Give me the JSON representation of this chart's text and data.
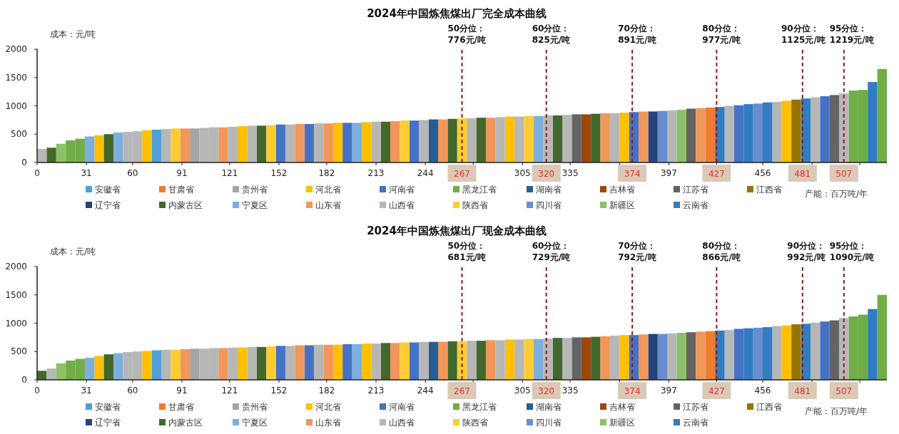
{
  "chart_data": [
    {
      "type": "bar",
      "title": "2024年中国炼焦煤出厂完全成本曲线",
      "ylabel": "成本：元/吨",
      "xlabel": "产能：百万吨/年",
      "legend": "bottom",
      "grid": false,
      "xlim": [
        0,
        534
      ],
      "xticks": [
        0,
        31,
        60,
        91,
        121,
        152,
        182,
        213,
        244,
        {
          "value": 274,
          "label": null
        },
        305,
        335,
        {
          "value": 366,
          "label": null
        },
        397,
        {
          "value": 427,
          "label": null
        },
        456,
        {
          "value": 487,
          "label": null
        },
        {
          "value": 517,
          "label": null
        }
      ],
      "ylim": [
        0,
        2000
      ],
      "yticks": [
        0,
        500,
        1000,
        1500,
        2000
      ],
      "ref_lines": [
        {
          "axis": "x",
          "value": 267,
          "label": "50分位：\n776元/吨",
          "color": "#8b1a1a",
          "line_style": "dashed"
        },
        {
          "axis": "x",
          "value": 320,
          "label": "60分位：\n825元/吨",
          "color": "#8b1a1a",
          "line_style": "dashed"
        },
        {
          "axis": "x",
          "value": 374,
          "label": "70分位：\n891元/吨",
          "color": "#8b1a1a",
          "line_style": "dashed"
        },
        {
          "axis": "x",
          "value": 427,
          "label": "80分位：\n977元/吨",
          "color": "#8b1a1a",
          "line_style": "dashed"
        },
        {
          "axis": "x",
          "value": 481,
          "label": "90分位：\n1125元/吨",
          "color": "#8b1a1a",
          "line_style": "dashed"
        },
        {
          "axis": "x",
          "value": 507,
          "label": "95分位：\n1219元/吨",
          "color": "#8b1a1a",
          "line_style": "dashed"
        }
      ],
      "annotations": [
        {
          "text": "267",
          "x": 267,
          "y": 0
        },
        {
          "text": "320",
          "x": 320,
          "y": 0
        },
        {
          "text": "374",
          "x": 374,
          "y": 0
        },
        {
          "text": "427",
          "x": 427,
          "y": 0
        },
        {
          "text": "481",
          "x": 481,
          "y": 0
        },
        {
          "text": "507",
          "x": 507,
          "y": 0
        }
      ],
      "series": [
        {
          "name": "安徽省",
          "color": "#4f9fd6",
          "x": [
            75
          ],
          "values": [
            580
          ]
        },
        {
          "name": "甘肃省",
          "color": "#ed7d31",
          "x": [
            423
          ],
          "values": [
            970
          ]
        },
        {
          "name": "贵州省",
          "color": "#a5a5a5",
          "x": [
            99
          ],
          "values": [
            600
          ]
        },
        {
          "name": "河北省",
          "color": "#ffc000",
          "x": [
            39,
            69,
            129,
            189,
            207,
            297,
            369,
            471
          ],
          "values": [
            480,
            570,
            640,
            700,
            710,
            810,
            880,
            1090
          ]
        },
        {
          "name": "河南省",
          "color": "#4472c4",
          "x": [
            153,
            171,
            195,
            237,
            375,
            441,
            495
          ],
          "values": [
            670,
            680,
            700,
            740,
            890,
            1010,
            1170
          ]
        },
        {
          "name": "黑龙江省",
          "color": "#70ad47",
          "x": [
            21,
            27,
            513,
            519,
            531
          ],
          "values": [
            390,
            420,
            1270,
            1280,
            1650
          ]
        },
        {
          "name": "湖南省",
          "color": "#255e91",
          "x": [
            249
          ],
          "values": [
            760
          ]
        },
        {
          "name": "吉林省",
          "color": "#9e480e",
          "x": [
            345
          ],
          "values": [
            850
          ]
        },
        {
          "name": "江苏省",
          "color": "#636363",
          "x": [
            339,
            411,
            501
          ],
          "values": [
            850,
            950,
            1190
          ]
        },
        {
          "name": "江西省",
          "color": "#997300",
          "x": [
            477
          ],
          "values": [
            1110
          ]
        },
        {
          "name": "辽宁省",
          "color": "#264478",
          "x": [
            387
          ],
          "values": [
            900
          ]
        },
        {
          "name": "内蒙古区",
          "color": "#43682b",
          "x": [
            9,
            45,
            141,
            219,
            261,
            279,
            327,
            351
          ],
          "values": [
            260,
            500,
            650,
            720,
            770,
            790,
            830,
            860
          ]
        },
        {
          "name": "宁夏区",
          "color": "#7cafdd",
          "x": [
            33,
            51,
            201,
            315
          ],
          "values": [
            460,
            530,
            700,
            820
          ]
        },
        {
          "name": "山东省",
          "color": "#f1975a",
          "x": [
            93,
            117,
            165,
            183,
            225,
            255,
            285,
            357,
            381,
            417
          ],
          "values": [
            600,
            620,
            680,
            690,
            730,
            760,
            790,
            870,
            900,
            960
          ]
        },
        {
          "name": "山西省",
          "color": "#b7b7b7",
          "x": [
            3,
            57,
            63,
            81,
            105,
            111,
            123,
            135,
            159,
            177,
            213,
            243,
            273,
            291,
            303,
            321,
            333,
            363,
            399,
            435,
            465,
            489,
            507
          ],
          "values": [
            240,
            540,
            550,
            590,
            610,
            620,
            630,
            650,
            670,
            690,
            720,
            750,
            780,
            800,
            810,
            830,
            840,
            870,
            920,
            1000,
            1070,
            1150,
            1220
          ]
        },
        {
          "name": "陕西省",
          "color": "#ffcd33",
          "x": [
            87,
            147,
            231,
            267,
            309
          ],
          "values": [
            600,
            660,
            740,
            780,
            820
          ]
        },
        {
          "name": "四川省",
          "color": "#698ed0",
          "x": [
            393,
            453
          ],
          "values": [
            910,
            1040
          ]
        },
        {
          "name": "新疆区",
          "color": "#8cc168",
          "x": [
            15,
            405
          ],
          "values": [
            330,
            930
          ]
        },
        {
          "name": "云南省",
          "color": "#327dc2",
          "x": [
            429,
            447,
            459,
            483,
            525
          ],
          "values": [
            980,
            1030,
            1060,
            1130,
            1420
          ]
        }
      ]
    },
    {
      "type": "bar",
      "title": "2024年中国炼焦煤出厂现金成本曲线",
      "ylabel": "成本：元/吨",
      "xlabel": "产能：百万吨/年",
      "legend": "bottom",
      "grid": false,
      "xlim": [
        0,
        534
      ],
      "xticks": [
        0,
        31,
        60,
        91,
        121,
        152,
        182,
        213,
        244,
        {
          "value": 274,
          "label": null
        },
        305,
        335,
        {
          "value": 366,
          "label": null
        },
        397,
        {
          "value": 427,
          "label": null
        },
        456,
        {
          "value": 487,
          "label": null
        },
        {
          "value": 517,
          "label": null
        }
      ],
      "ylim": [
        0,
        2000
      ],
      "yticks": [
        0,
        500,
        1000,
        1500,
        2000
      ],
      "ref_lines": [
        {
          "axis": "x",
          "value": 267,
          "label": "50分位：\n681元/吨",
          "color": "#8b1a1a",
          "line_style": "dashed"
        },
        {
          "axis": "x",
          "value": 320,
          "label": "60分位：\n729元/吨",
          "color": "#8b1a1a",
          "line_style": "dashed"
        },
        {
          "axis": "x",
          "value": 374,
          "label": "70分位：\n792元/吨",
          "color": "#8b1a1a",
          "line_style": "dashed"
        },
        {
          "axis": "x",
          "value": 427,
          "label": "80分位：\n866元/吨",
          "color": "#8b1a1a",
          "line_style": "dashed"
        },
        {
          "axis": "x",
          "value": 481,
          "label": "90分位：\n992元/吨",
          "color": "#8b1a1a",
          "line_style": "dashed"
        },
        {
          "axis": "x",
          "value": 507,
          "label": "95分位：\n1090元/吨",
          "color": "#8b1a1a",
          "line_style": "dashed"
        }
      ],
      "annotations": [
        {
          "text": "267",
          "x": 267,
          "y": 0
        },
        {
          "text": "320",
          "x": 320,
          "y": 0
        },
        {
          "text": "374",
          "x": 374,
          "y": 0
        },
        {
          "text": "427",
          "x": 427,
          "y": 0
        },
        {
          "text": "481",
          "x": 481,
          "y": 0
        },
        {
          "text": "507",
          "x": 507,
          "y": 0
        }
      ],
      "series": [
        {
          "name": "安徽省",
          "color": "#4f9fd6",
          "x": [
            75
          ],
          "values": [
            520
          ]
        },
        {
          "name": "甘肃省",
          "color": "#ed7d31",
          "x": [
            423
          ],
          "values": [
            860
          ]
        },
        {
          "name": "贵州省",
          "color": "#a5a5a5",
          "x": [
            99
          ],
          "values": [
            550
          ]
        },
        {
          "name": "河北省",
          "color": "#ffc000",
          "x": [
            39,
            69,
            129,
            189,
            207,
            297,
            369,
            471
          ],
          "values": [
            420,
            510,
            570,
            620,
            640,
            710,
            790,
            960
          ]
        },
        {
          "name": "河南省",
          "color": "#4472c4",
          "x": [
            153,
            171,
            195,
            237,
            375,
            441,
            495
          ],
          "values": [
            600,
            610,
            630,
            660,
            790,
            900,
            1030
          ]
        },
        {
          "name": "黑龙江省",
          "color": "#70ad47",
          "x": [
            21,
            27,
            513,
            519,
            531
          ],
          "values": [
            340,
            370,
            1120,
            1150,
            1500
          ]
        },
        {
          "name": "湖南省",
          "color": "#255e91",
          "x": [
            249
          ],
          "values": [
            670
          ]
        },
        {
          "name": "吉林省",
          "color": "#9e480e",
          "x": [
            345
          ],
          "values": [
            750
          ]
        },
        {
          "name": "江苏省",
          "color": "#636363",
          "x": [
            339,
            411,
            501
          ],
          "values": [
            750,
            840,
            1050
          ]
        },
        {
          "name": "江西省",
          "color": "#997300",
          "x": [
            477
          ],
          "values": [
            980
          ]
        },
        {
          "name": "辽宁省",
          "color": "#264478",
          "x": [
            387
          ],
          "values": [
            810
          ]
        },
        {
          "name": "内蒙古区",
          "color": "#43682b",
          "x": [
            3,
            45,
            141,
            219,
            261,
            279,
            327,
            351
          ],
          "values": [
            160,
            450,
            580,
            650,
            680,
            690,
            740,
            760
          ]
        },
        {
          "name": "宁夏区",
          "color": "#7cafdd",
          "x": [
            33,
            51,
            201,
            315
          ],
          "values": [
            390,
            470,
            630,
            720
          ]
        },
        {
          "name": "山东省",
          "color": "#f1975a",
          "x": [
            93,
            117,
            165,
            183,
            225,
            255,
            285,
            357,
            381,
            417
          ],
          "values": [
            540,
            560,
            610,
            620,
            650,
            670,
            700,
            770,
            800,
            850
          ]
        },
        {
          "name": "山西省",
          "color": "#b7b7b7",
          "x": [
            9,
            57,
            63,
            81,
            105,
            111,
            123,
            135,
            159,
            177,
            213,
            243,
            273,
            291,
            303,
            321,
            333,
            363,
            399,
            435,
            465,
            489,
            507
          ],
          "values": [
            200,
            490,
            500,
            530,
            550,
            560,
            570,
            580,
            600,
            620,
            640,
            670,
            690,
            700,
            710,
            730,
            740,
            780,
            820,
            880,
            950,
            1010,
            1090
          ]
        },
        {
          "name": "陕西省",
          "color": "#ffcd33",
          "x": [
            87,
            147,
            231,
            267,
            309
          ],
          "values": [
            530,
            590,
            660,
            680,
            720
          ]
        },
        {
          "name": "四川省",
          "color": "#698ed0",
          "x": [
            393,
            453
          ],
          "values": [
            810,
            920
          ]
        },
        {
          "name": "新疆区",
          "color": "#8cc168",
          "x": [
            15,
            405
          ],
          "values": [
            290,
            830
          ]
        },
        {
          "name": "云南省",
          "color": "#327dc2",
          "x": [
            429,
            447,
            459,
            483,
            525
          ],
          "values": [
            870,
            910,
            930,
            990,
            1250
          ]
        }
      ]
    }
  ]
}
